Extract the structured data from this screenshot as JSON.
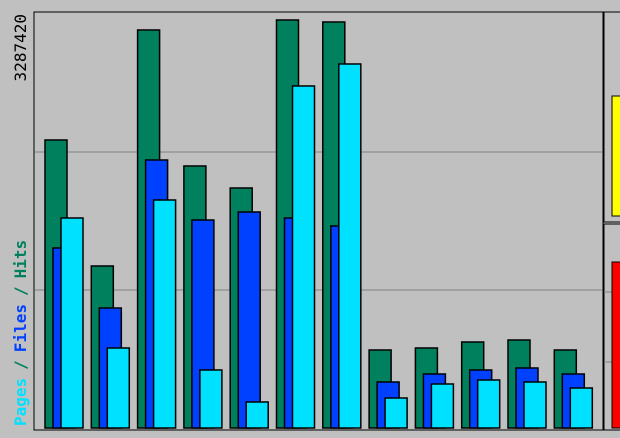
{
  "chart_data": {
    "type": "bar",
    "categories": [
      null,
      null,
      null,
      null,
      null,
      null,
      null,
      null,
      null,
      null,
      null,
      null
    ],
    "series": [
      {
        "name": "Hits",
        "color": "#00805c",
        "values": [
          2287000,
          1286400,
          3160500,
          2080500,
          1905800,
          3239900,
          3224000,
          619400,
          635300,
          682900,
          698800,
          619400
        ]
      },
      {
        "name": "Files",
        "color": "#0040ff",
        "values": [
          1429400,
          952900,
          2128200,
          1651700,
          1715300,
          1667600,
          1604100,
          365300,
          428800,
          460600,
          476500,
          428800
        ]
      },
      {
        "name": "Pages",
        "color": "#00e0ff",
        "values": [
          1667600,
          635300,
          1810500,
          460600,
          206500,
          2715800,
          2890500,
          238200,
          349400,
          381200,
          365300,
          317600
        ]
      }
    ],
    "separator": "/",
    "ylim": [
      0,
      3287420
    ],
    "yticks": [
      3287420
    ],
    "gridlines": [
      1095807,
      2191613
    ],
    "grid": true
  }
}
